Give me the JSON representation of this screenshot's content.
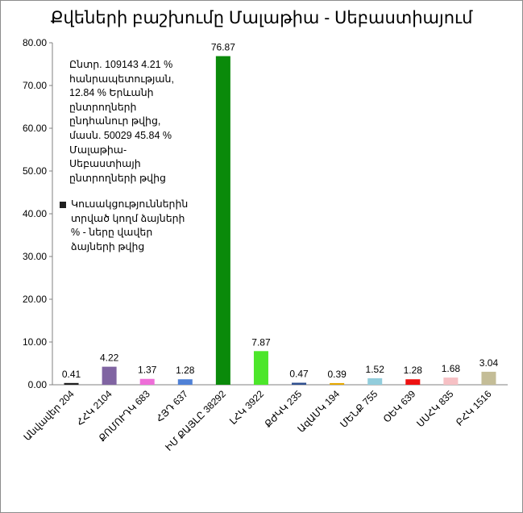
{
  "chart_data": {
    "type": "bar",
    "title": "Քվեների բաշխումը Մալաթիա - Սեբաստիայում",
    "categories": [
      "Անվավեր 204",
      "ՀՀԿ 2104",
      "ՔՈՄՈՒԴԿ 683",
      "ՀՅԴ 637",
      "ԻՄ ՔԱՅԼԸ 38292",
      "ԼՀԿ 3922",
      "ՔԺԿԿ 235",
      "ԱզԱՄԿ 194",
      "ՄԵՆՔ 755",
      "ՕԵԿ 639",
      "ՍՍՀԿ 835",
      "ԲՀԿ 1516"
    ],
    "values": [
      0.41,
      4.22,
      1.37,
      1.28,
      76.87,
      7.87,
      0.47,
      0.39,
      1.52,
      1.28,
      1.68,
      3.04
    ],
    "value_labels": [
      "0.41",
      "4.22",
      "1.37",
      "1.28",
      "76.87",
      "7.87",
      "0.47",
      "0.39",
      "1.52",
      "1.28",
      "1.68",
      "3.04"
    ],
    "colors": [
      "#1f1f1f",
      "#8064a2",
      "#ee6ed8",
      "#4f81d6",
      "#0a8a0a",
      "#4ce62a",
      "#2f4f8f",
      "#e6a800",
      "#92cddc",
      "#ee1111",
      "#f6c0c4",
      "#c4bd97"
    ],
    "yticks": [
      "0.00",
      "10.00",
      "20.00",
      "30.00",
      "40.00",
      "50.00",
      "60.00",
      "70.00",
      "80.00"
    ],
    "ylim": [
      0,
      80
    ],
    "grid": false,
    "xlabel": "",
    "ylabel": ""
  },
  "annotation": {
    "lines": [
      "Ընտր. 109143 4.21 %",
      "հանրապետության,",
      "12.84 % Երևանի",
      "ընտրողների",
      "ընդհանուր թվից,",
      "մասն.  50029 45.84 %",
      "Մալաթիա-",
      "Սեբաստիայի",
      "ընտրողների թվից"
    ]
  },
  "legend": {
    "lines": [
      "Կուսակցություններին",
      "տրված կողմ ձայների",
      "% - ները վավեր",
      "ձայների թվից"
    ]
  }
}
